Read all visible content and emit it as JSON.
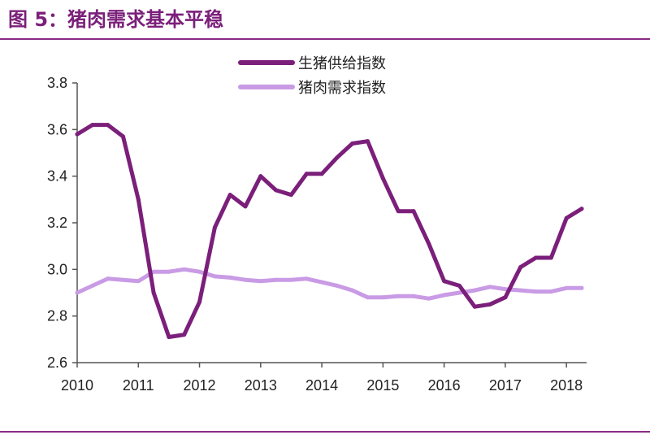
{
  "figure": {
    "title": "图 5：猪肉需求基本平稳"
  },
  "colors": {
    "accent": "#7b1f7a",
    "rule": "#8a2a86",
    "axis": "#555555"
  },
  "chart_data": {
    "type": "line",
    "title": "",
    "xlabel": "",
    "ylabel": "",
    "xlim": [
      2010,
      2018.33
    ],
    "ylim": [
      2.6,
      3.8
    ],
    "x_ticks": [
      "2010",
      "2011",
      "2012",
      "2013",
      "2014",
      "2015",
      "2016",
      "2017",
      "2018"
    ],
    "y_ticks": [
      "2.6",
      "2.8",
      "3.0",
      "3.2",
      "3.4",
      "3.6",
      "3.8"
    ],
    "grid": false,
    "legend_position": "top-center",
    "x": [
      2010.0,
      2010.25,
      2010.5,
      2010.75,
      2011.0,
      2011.25,
      2011.5,
      2011.75,
      2012.0,
      2012.25,
      2012.5,
      2012.75,
      2013.0,
      2013.25,
      2013.5,
      2013.75,
      2014.0,
      2014.25,
      2014.5,
      2014.75,
      2015.0,
      2015.25,
      2015.5,
      2015.75,
      2016.0,
      2016.25,
      2016.5,
      2016.75,
      2017.0,
      2017.25,
      2017.5,
      2017.75,
      2018.0,
      2018.25
    ],
    "series": [
      {
        "name": "生猪供给指数",
        "color": "#7b1f7a",
        "stroke_weight": "thick",
        "values": [
          3.58,
          3.62,
          3.62,
          3.57,
          3.3,
          2.9,
          2.71,
          2.72,
          2.86,
          3.18,
          3.32,
          3.27,
          3.4,
          3.34,
          3.32,
          3.41,
          3.41,
          3.48,
          3.54,
          3.55,
          3.39,
          3.25,
          3.25,
          3.11,
          2.95,
          2.93,
          2.84,
          2.85,
          2.88,
          3.01,
          3.05,
          3.05,
          3.22,
          3.26
        ]
      },
      {
        "name": "猪肉需求指数",
        "color": "#c99be5",
        "stroke_weight": "thick",
        "values": [
          2.9,
          2.93,
          2.96,
          2.955,
          2.95,
          2.99,
          2.99,
          3.0,
          2.99,
          2.97,
          2.965,
          2.955,
          2.95,
          2.955,
          2.955,
          2.96,
          2.945,
          2.93,
          2.91,
          2.88,
          2.88,
          2.885,
          2.885,
          2.875,
          2.89,
          2.9,
          2.91,
          2.925,
          2.915,
          2.91,
          2.905,
          2.905,
          2.92,
          2.92
        ]
      }
    ]
  }
}
